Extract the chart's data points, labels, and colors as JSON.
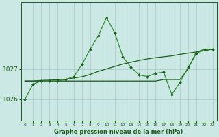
{
  "title": "Graphe pression niveau de la mer (hPa)",
  "bg_color": "#cce8e4",
  "grid_color": "#aacfcc",
  "line_color_dark": "#1a5c1a",
  "line_color_light": "#2e8b2e",
  "x_labels": [
    "0",
    "1",
    "2",
    "3",
    "4",
    "5",
    "6",
    "7",
    "8",
    "9",
    "10",
    "11",
    "12",
    "13",
    "14",
    "15",
    "16",
    "17",
    "18",
    "19",
    "20",
    "21",
    "22",
    "23"
  ],
  "y_ticks": [
    1026,
    1027
  ],
  "ylim": [
    1025.3,
    1029.2
  ],
  "series_main": [
    1026.0,
    1026.5,
    1026.6,
    1026.6,
    1026.6,
    1026.65,
    1026.75,
    1027.15,
    1027.65,
    1028.1,
    1028.7,
    1028.2,
    1027.4,
    1027.05,
    1026.8,
    1026.75,
    1026.85,
    1026.9,
    1026.15,
    1026.55,
    1027.05,
    1027.5,
    1027.65,
    1027.65
  ],
  "series_trend": [
    1026.6,
    1026.6,
    1026.62,
    1026.63,
    1026.64,
    1026.66,
    1026.7,
    1026.74,
    1026.82,
    1026.92,
    1027.0,
    1027.08,
    1027.16,
    1027.22,
    1027.28,
    1027.33,
    1027.37,
    1027.4,
    1027.43,
    1027.48,
    1027.52,
    1027.56,
    1027.6,
    1027.65
  ],
  "series_flat": [
    1026.6,
    1026.6,
    1026.6,
    1026.6,
    1026.6,
    1026.6,
    1026.6,
    1026.6,
    1026.6,
    1026.6,
    1026.6,
    1026.6,
    1026.6,
    1026.6,
    1026.6,
    1026.6,
    1026.6,
    1026.65,
    1026.65,
    1026.65,
    1027.0,
    1027.55,
    1027.65,
    1027.65
  ]
}
